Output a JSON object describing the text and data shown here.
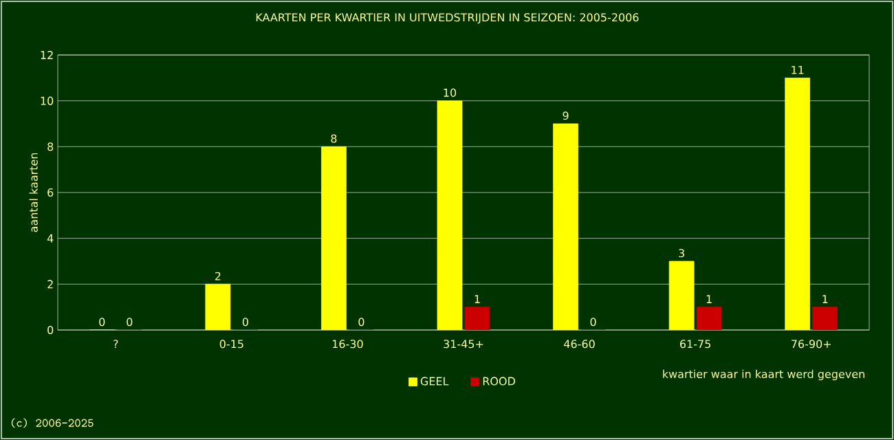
{
  "chart_data": {
    "type": "bar",
    "title": "KAARTEN PER KWARTIER IN UITWEDSTRIJDEN IN SEIZOEN: 2005-2006",
    "xlabel": "kwartier waar in kaart werd gegeven",
    "ylabel": "aantal kaarten",
    "categories": [
      "?",
      "0-15",
      "16-30",
      "31-45+",
      "46-60",
      "61-75",
      "76-90+"
    ],
    "series": [
      {
        "name": "GEEL",
        "color": "#ffff00",
        "values": [
          0,
          2,
          8,
          10,
          9,
          3,
          11
        ]
      },
      {
        "name": "ROOD",
        "color": "#cc0000",
        "values": [
          0,
          0,
          0,
          1,
          0,
          1,
          1
        ]
      }
    ],
    "ylim": [
      0,
      12
    ],
    "yticks": [
      0,
      2,
      4,
      6,
      8,
      10,
      12
    ],
    "grid": "y",
    "legend": "bottom",
    "data_labels": true,
    "annotations": [
      "(c) 2006-2025"
    ]
  }
}
